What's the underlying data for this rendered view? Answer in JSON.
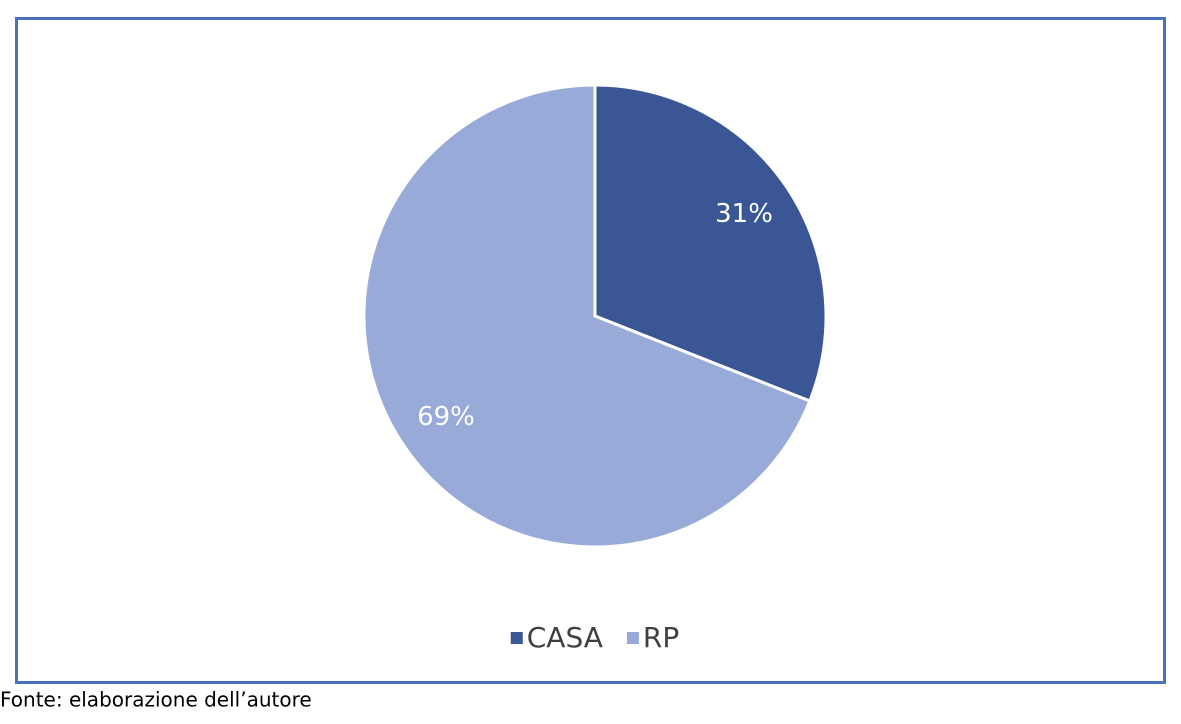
{
  "chart_data": {
    "type": "pie",
    "categories": [
      "CASA",
      "RP"
    ],
    "values": [
      31,
      69
    ],
    "value_labels": [
      "31%",
      "69%"
    ],
    "colors": [
      "#3a5694",
      "#97aad8"
    ],
    "legend": "bottom",
    "source": "Fonte: elaborazione dell’autore"
  }
}
